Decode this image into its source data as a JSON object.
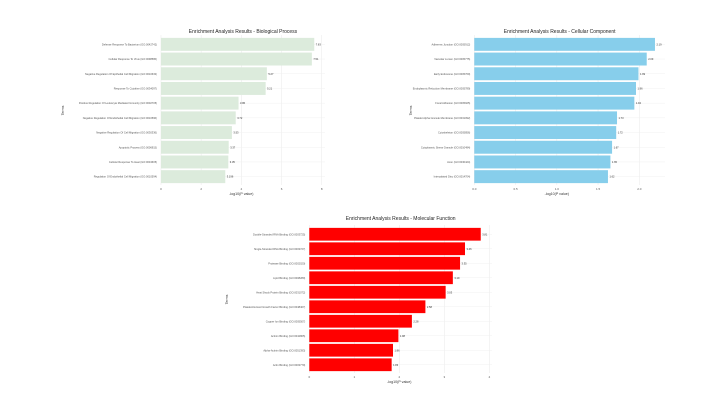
{
  "chart_data": [
    {
      "type": "bar",
      "orientation": "horizontal",
      "title": "Enrichment Analysis Results - Biological Process",
      "xlabel": "-log10(P value)",
      "ylabel": "Terms",
      "xlim": [
        0,
        8
      ],
      "xticks": [
        0,
        2,
        4,
        6,
        8
      ],
      "grid": true,
      "color": "#dcebdc",
      "categories": [
        "Defense Response To Bacterium (GO:0042742)",
        "Cellular Response To Virus (GO:0098586)",
        "Negative Regulation Of Epithelial Cell Migration (GO:0010633)",
        "Response To Cytokine (GO:0034097)",
        "Positive Regulation Of Leukocyte Mediated Immunity (GO:0002705)",
        "Negative Regulation Of Endothelial Cell Migration (GO:0010596)",
        "Negative Regulation Of Cell Migration (GO:0030336)",
        "Apoptotic Process (GO:0006915)",
        "Cellular Response To Heat (GO:0034605)",
        "Regulation Of Endothelial Cell Migration (GO:0010594)"
      ],
      "values": [
        7.63,
        7.51,
        5.27,
        5.21,
        3.86,
        3.72,
        3.53,
        3.37,
        3.35,
        3.2
      ],
      "labels": [
        "7.63",
        "7.51",
        "5.27",
        "5.21",
        "3.86",
        "3.72",
        "3.53",
        "3.37",
        "3.35",
        "3.196"
      ]
    },
    {
      "type": "bar",
      "orientation": "horizontal",
      "title": "Enrichment Analysis Results - Cellular Component",
      "xlabel": "-log10(P value)",
      "ylabel": "Terms",
      "xlim": [
        0,
        2.2
      ],
      "xticks": [
        "0.0",
        "0.5",
        "1.0",
        "1.5",
        "2.0"
      ],
      "grid": true,
      "color": "#87ceeb",
      "categories": [
        "Adherens Junction (GO:0005912)",
        "Vacuolar Lumen (GO:0005775)",
        "Early Endosome (GO:0005769)",
        "Endoplasmic Reticulum Membrane (GO:0005789)",
        "Focal Adhesion (GO:0005925)",
        "Platelet Alpha Granule Membrane (GO:0031092)",
        "Cytoskeleton (GO:0005856)",
        "Cytoplasmic Stress Granule (GO:0010494)",
        "Axon (GO:0030424)",
        "Intercalated Disc (GO:0014704)"
      ],
      "values": [
        2.19,
        2.09,
        1.99,
        1.96,
        1.94,
        1.73,
        1.72,
        1.67,
        1.65,
        1.62
      ],
      "labels": [
        "2.19",
        "2.09",
        "1.99",
        "1.96",
        "1.94",
        "1.73",
        "1.72",
        "1.67",
        "1.65",
        "1.62"
      ]
    },
    {
      "type": "bar",
      "orientation": "horizontal",
      "title": "Enrichment Analysis Results - Molecular Function",
      "xlabel": "-log10(P value)",
      "ylabel": "Terms",
      "xlim": [
        0,
        4
      ],
      "xticks": [
        0,
        1,
        2,
        3,
        4
      ],
      "grid": true,
      "color": "#ff0000",
      "categories": [
        "Double-Stranded RNA Binding (GO:0003725)",
        "Single-Stranded RNA Binding (GO:0003727)",
        "Protease Binding (GO:0002020)",
        "Lipid Binding (GO:0008289)",
        "Heat Shock Protein Binding (GO:0031072)",
        "Platelet-Derived Growth Factor Binding (GO:0048407)",
        "Copper Ion Binding (GO:0005507)",
        "Actinin Binding (GO:0042805)",
        "Alpha-Actinin Binding (GO:0051393)",
        "Actin Binding (GO:0003779)"
      ],
      "values": [
        3.81,
        3.46,
        3.35,
        3.19,
        3.03,
        2.58,
        2.28,
        1.98,
        1.86,
        1.83
      ],
      "labels": [
        "3.81",
        "3.46",
        "3.35",
        "3.19",
        "3.03",
        "2.58",
        "2.28",
        "1.98",
        "1.86",
        "1.83"
      ]
    }
  ]
}
